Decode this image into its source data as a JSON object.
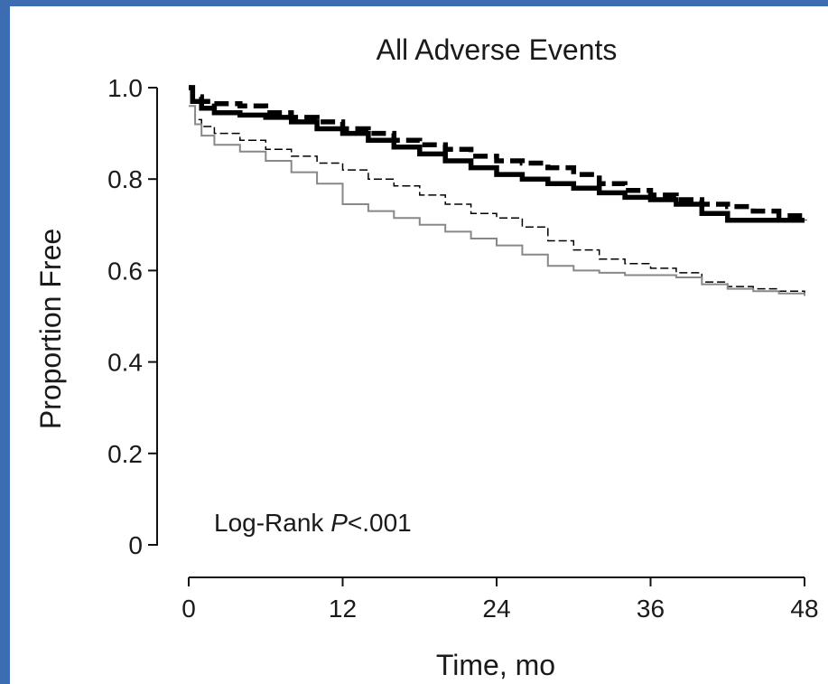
{
  "chart_data": {
    "type": "line",
    "subtype": "kaplan-meier",
    "title": "All Adverse Events",
    "xlabel": "Time, mo",
    "ylabel": "Proportion Free",
    "xlim": [
      0,
      48
    ],
    "ylim": [
      0,
      1.0
    ],
    "x_ticks": [
      "0",
      "12",
      "24",
      "36",
      "48"
    ],
    "y_ticks": [
      "0",
      "0.2",
      "0.4",
      "0.6",
      "0.8",
      "1.0"
    ],
    "grid": false,
    "annotation": {
      "prefix": "Log-Rank ",
      "italic": "P",
      "suffix": "<.001"
    },
    "series": [
      {
        "style": "thick-dashed",
        "color": "#000000",
        "points": [
          [
            0,
            1.0
          ],
          [
            0.3,
            0.98
          ],
          [
            1,
            0.97
          ],
          [
            2,
            0.965
          ],
          [
            4,
            0.96
          ],
          [
            6,
            0.945
          ],
          [
            8,
            0.935
          ],
          [
            10,
            0.925
          ],
          [
            12,
            0.91
          ],
          [
            14,
            0.9
          ],
          [
            16,
            0.885
          ],
          [
            18,
            0.875
          ],
          [
            20,
            0.865
          ],
          [
            22,
            0.85
          ],
          [
            24,
            0.84
          ],
          [
            26,
            0.835
          ],
          [
            28,
            0.825
          ],
          [
            30,
            0.81
          ],
          [
            32,
            0.79
          ],
          [
            34,
            0.775
          ],
          [
            36,
            0.765
          ],
          [
            38,
            0.755
          ],
          [
            40,
            0.745
          ],
          [
            42,
            0.74
          ],
          [
            44,
            0.73
          ],
          [
            46,
            0.72
          ],
          [
            48,
            0.71
          ]
        ]
      },
      {
        "style": "thick-solid",
        "color": "#000000",
        "points": [
          [
            0,
            1.0
          ],
          [
            0.3,
            0.97
          ],
          [
            1,
            0.955
          ],
          [
            2,
            0.945
          ],
          [
            4,
            0.94
          ],
          [
            6,
            0.935
          ],
          [
            8,
            0.925
          ],
          [
            10,
            0.91
          ],
          [
            12,
            0.9
          ],
          [
            14,
            0.885
          ],
          [
            16,
            0.87
          ],
          [
            18,
            0.855
          ],
          [
            20,
            0.84
          ],
          [
            22,
            0.825
          ],
          [
            24,
            0.81
          ],
          [
            26,
            0.8
          ],
          [
            28,
            0.79
          ],
          [
            30,
            0.78
          ],
          [
            32,
            0.77
          ],
          [
            34,
            0.76
          ],
          [
            36,
            0.755
          ],
          [
            38,
            0.745
          ],
          [
            40,
            0.725
          ],
          [
            42,
            0.71
          ],
          [
            44,
            0.71
          ],
          [
            46,
            0.71
          ],
          [
            48,
            0.71
          ]
        ]
      },
      {
        "style": "thin-dashed",
        "color": "#000000",
        "points": [
          [
            0,
            0.96
          ],
          [
            0.5,
            0.93
          ],
          [
            1,
            0.915
          ],
          [
            2,
            0.9
          ],
          [
            4,
            0.885
          ],
          [
            6,
            0.865
          ],
          [
            8,
            0.85
          ],
          [
            10,
            0.835
          ],
          [
            12,
            0.82
          ],
          [
            14,
            0.8
          ],
          [
            16,
            0.785
          ],
          [
            18,
            0.765
          ],
          [
            20,
            0.745
          ],
          [
            22,
            0.725
          ],
          [
            24,
            0.715
          ],
          [
            26,
            0.695
          ],
          [
            28,
            0.665
          ],
          [
            30,
            0.645
          ],
          [
            32,
            0.625
          ],
          [
            34,
            0.615
          ],
          [
            36,
            0.605
          ],
          [
            38,
            0.595
          ],
          [
            40,
            0.575
          ],
          [
            42,
            0.565
          ],
          [
            44,
            0.56
          ],
          [
            46,
            0.555
          ],
          [
            48,
            0.545
          ]
        ]
      },
      {
        "style": "thin-solid-gray",
        "color": "#888888",
        "points": [
          [
            0,
            0.96
          ],
          [
            0.5,
            0.92
          ],
          [
            1,
            0.895
          ],
          [
            2,
            0.875
          ],
          [
            4,
            0.86
          ],
          [
            6,
            0.84
          ],
          [
            8,
            0.815
          ],
          [
            10,
            0.79
          ],
          [
            12,
            0.745
          ],
          [
            14,
            0.73
          ],
          [
            16,
            0.715
          ],
          [
            18,
            0.7
          ],
          [
            20,
            0.685
          ],
          [
            22,
            0.67
          ],
          [
            24,
            0.655
          ],
          [
            26,
            0.635
          ],
          [
            28,
            0.61
          ],
          [
            30,
            0.6
          ],
          [
            32,
            0.595
          ],
          [
            34,
            0.59
          ],
          [
            36,
            0.59
          ],
          [
            38,
            0.585
          ],
          [
            40,
            0.57
          ],
          [
            42,
            0.56
          ],
          [
            44,
            0.555
          ],
          [
            46,
            0.55
          ],
          [
            48,
            0.545
          ]
        ]
      }
    ]
  }
}
